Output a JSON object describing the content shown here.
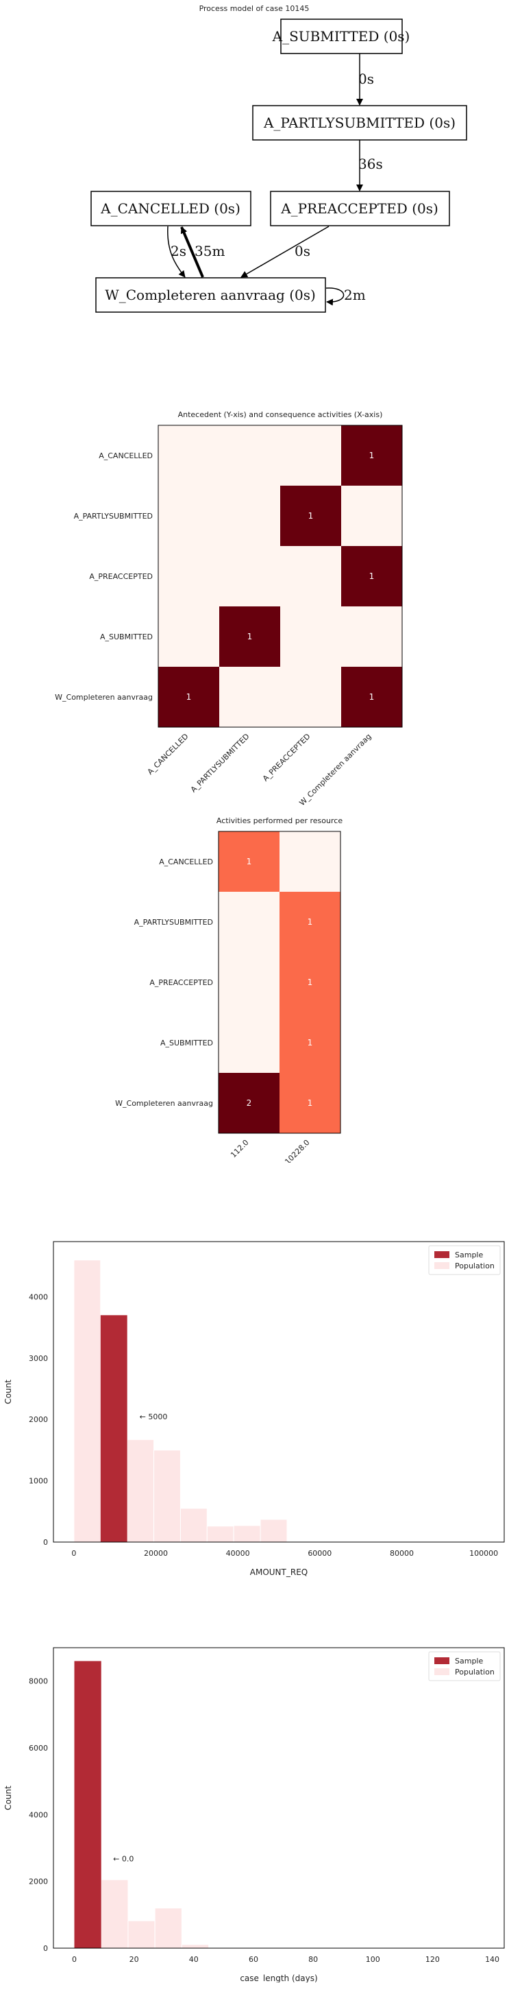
{
  "process_model": {
    "title": "Process model of case 10145",
    "nodes": [
      {
        "id": "A_SUBMITTED",
        "label": "A_SUBMITTED (0s)"
      },
      {
        "id": "A_PARTLYSUBMITTED",
        "label": "A_PARTLYSUBMITTED (0s)"
      },
      {
        "id": "A_CANCELLED",
        "label": "A_CANCELLED (0s)"
      },
      {
        "id": "A_PREACCEPTED",
        "label": "A_PREACCEPTED (0s)"
      },
      {
        "id": "W_Completeren",
        "label": "W_Completeren aanvraag (0s)"
      }
    ],
    "edges": [
      {
        "from": "A_SUBMITTED",
        "to": "A_PARTLYSUBMITTED",
        "label": "0s"
      },
      {
        "from": "A_PARTLYSUBMITTED",
        "to": "A_PREACCEPTED",
        "label": "36s"
      },
      {
        "from": "A_CANCELLED",
        "to": "W_Completeren",
        "label": "2s"
      },
      {
        "from": "W_Completeren",
        "to": "A_CANCELLED",
        "label": "35m"
      },
      {
        "from": "A_PREACCEPTED",
        "to": "W_Completeren",
        "label": "0s"
      },
      {
        "from": "W_Completeren",
        "to": "W_Completeren",
        "label": "2m"
      }
    ]
  },
  "chart_data": [
    {
      "type": "heatmap",
      "title": "Antecedent (Y-xis) and consequence activities (X-axis)",
      "rows": [
        "A_CANCELLED",
        "A_PARTLYSUBMITTED",
        "A_PREACCEPTED",
        "A_SUBMITTED",
        "W_Completeren aanvraag"
      ],
      "cols": [
        "A_CANCELLED",
        "A_PARTLYSUBMITTED",
        "A_PREACCEPTED",
        "W_Completeren aanvraag"
      ],
      "values": [
        [
          0,
          0,
          0,
          1
        ],
        [
          0,
          0,
          1,
          0
        ],
        [
          0,
          0,
          0,
          1
        ],
        [
          0,
          1,
          0,
          0
        ],
        [
          1,
          0,
          0,
          1
        ]
      ],
      "colors": {
        "low": "#fff5f0",
        "high": "#67000d"
      }
    },
    {
      "type": "heatmap",
      "title": "Activities performed per resource",
      "rows": [
        "A_CANCELLED",
        "A_PARTLYSUBMITTED",
        "A_PREACCEPTED",
        "A_SUBMITTED",
        "W_Completeren aanvraag"
      ],
      "cols": [
        "112.0",
        "10228.0"
      ],
      "values": [
        [
          1,
          0
        ],
        [
          0,
          1
        ],
        [
          0,
          1
        ],
        [
          0,
          1
        ],
        [
          2,
          1
        ]
      ],
      "colors": {
        "low": "#fff5f0",
        "mid": "#fb6a4a",
        "high": "#67000d"
      }
    },
    {
      "type": "bar",
      "xlabel": "AMOUNT_REQ",
      "ylabel": "Count",
      "xlim": [
        -5000,
        105000
      ],
      "ylim": [
        0,
        4900
      ],
      "xticks": [
        0,
        20000,
        40000,
        60000,
        80000,
        100000
      ],
      "yticks": [
        0,
        1000,
        2000,
        3000,
        4000
      ],
      "legend": {
        "position": "top-right",
        "entries": [
          "Sample",
          "Population"
        ]
      },
      "annotation": {
        "text": "← 5000",
        "x": 16000,
        "y": 2000
      },
      "series": [
        {
          "name": "Sample",
          "color": "#b22a35",
          "bins": [
            {
              "x0": 6500,
              "x1": 13000,
              "count": 3700
            }
          ]
        },
        {
          "name": "Population",
          "color": "#fde6e6",
          "bins": [
            {
              "x0": 0,
              "x1": 6500,
              "count": 4600
            },
            {
              "x0": 13000,
              "x1": 19500,
              "count": 1670
            },
            {
              "x0": 19500,
              "x1": 26000,
              "count": 1500
            },
            {
              "x0": 26000,
              "x1": 32500,
              "count": 550
            },
            {
              "x0": 32500,
              "x1": 39000,
              "count": 260
            },
            {
              "x0": 39000,
              "x1": 45500,
              "count": 270
            },
            {
              "x0": 45500,
              "x1": 52000,
              "count": 370
            }
          ]
        }
      ]
    },
    {
      "type": "bar",
      "xlabel": "case_length (days)",
      "ylabel": "Count",
      "xlim": [
        -7,
        144
      ],
      "ylim": [
        0,
        9000
      ],
      "xticks": [
        0,
        20,
        40,
        60,
        80,
        100,
        120,
        140
      ],
      "yticks": [
        0,
        2000,
        4000,
        6000,
        8000
      ],
      "legend": {
        "position": "top-right",
        "entries": [
          "Sample",
          "Population"
        ]
      },
      "annotation": {
        "text": "← 0.0",
        "x": 13,
        "y": 2600
      },
      "series": [
        {
          "name": "Sample",
          "color": "#b22a35",
          "bins": [
            {
              "x0": 0,
              "x1": 9,
              "count": 8600
            }
          ]
        },
        {
          "name": "Population",
          "color": "#fde6e6",
          "bins": [
            {
              "x0": 9,
              "x1": 18,
              "count": 2050
            },
            {
              "x0": 18,
              "x1": 27,
              "count": 820
            },
            {
              "x0": 27,
              "x1": 36,
              "count": 1200
            },
            {
              "x0": 36,
              "x1": 45,
              "count": 110
            }
          ]
        }
      ]
    }
  ]
}
